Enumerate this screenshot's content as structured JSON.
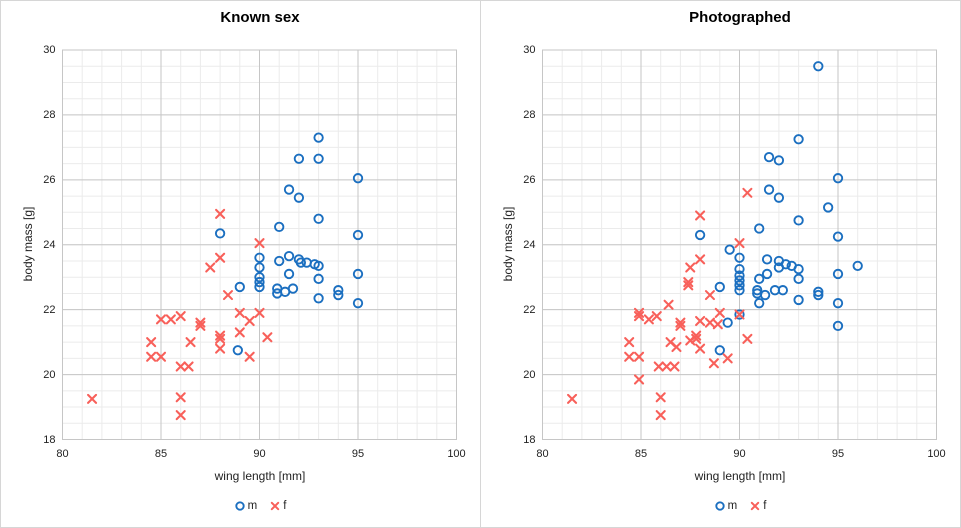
{
  "chart_data": [
    {
      "type": "scatter",
      "title": "Known sex",
      "xlabel": "wing length [mm]",
      "ylabel": "body mass [g]",
      "xlim": [
        80,
        100
      ],
      "ylim": [
        18,
        30
      ],
      "x_ticks": [
        80,
        85,
        90,
        95,
        100
      ],
      "y_ticks": [
        30,
        28,
        26,
        24,
        22,
        20,
        18
      ],
      "x_minor_step": 1,
      "y_minor_step": 0.5,
      "grid": true,
      "grid_minor_color": "#ebebeb",
      "grid_major_color": "#c6c6c6",
      "legend_position": "bottom",
      "series": [
        {
          "name": "m",
          "marker": "circle",
          "color": "#1b6fc0",
          "points": [
            [
              88,
              24.35
            ],
            [
              93,
              27.3
            ],
            [
              92,
              26.65
            ],
            [
              93,
              26.65
            ],
            [
              95,
              26.05
            ],
            [
              91.5,
              25.7
            ],
            [
              92,
              25.45
            ],
            [
              93,
              24.8
            ],
            [
              91,
              24.55
            ],
            [
              95,
              24.3
            ],
            [
              90,
              23.6
            ],
            [
              90,
              23.3
            ],
            [
              90,
              23.0
            ],
            [
              90,
              22.85
            ],
            [
              90,
              22.7
            ],
            [
              91,
              23.5
            ],
            [
              91.5,
              23.65
            ],
            [
              92,
              23.55
            ],
            [
              92.1,
              23.45
            ],
            [
              92.4,
              23.45
            ],
            [
              92.8,
              23.4
            ],
            [
              93,
              23.35
            ],
            [
              91.5,
              23.1
            ],
            [
              93,
              22.95
            ],
            [
              95,
              23.1
            ],
            [
              90.9,
              22.65
            ],
            [
              90.9,
              22.5
            ],
            [
              91.3,
              22.55
            ],
            [
              91.7,
              22.65
            ],
            [
              93,
              22.35
            ],
            [
              94,
              22.6
            ],
            [
              94,
              22.45
            ],
            [
              95,
              22.2
            ],
            [
              89,
              22.7
            ],
            [
              88.9,
              20.75
            ]
          ]
        },
        {
          "name": "f",
          "marker": "x",
          "color": "#f8605a",
          "points": [
            [
              88,
              24.95
            ],
            [
              90,
              24.05
            ],
            [
              88,
              23.6
            ],
            [
              87.5,
              23.3
            ],
            [
              88.4,
              22.45
            ],
            [
              85,
              21.7
            ],
            [
              85.5,
              21.7
            ],
            [
              86,
              21.8
            ],
            [
              87,
              21.6
            ],
            [
              87,
              21.5
            ],
            [
              89,
              21.9
            ],
            [
              90,
              21.9
            ],
            [
              89.5,
              21.65
            ],
            [
              89,
              21.3
            ],
            [
              88,
              21.2
            ],
            [
              88,
              21.1
            ],
            [
              90.4,
              21.15
            ],
            [
              84.5,
              21.0
            ],
            [
              86.5,
              21.0
            ],
            [
              88,
              20.8
            ],
            [
              89.5,
              20.55
            ],
            [
              84.5,
              20.55
            ],
            [
              85,
              20.55
            ],
            [
              86,
              20.25
            ],
            [
              86.4,
              20.25
            ],
            [
              81.5,
              19.25
            ],
            [
              86,
              19.3
            ],
            [
              86,
              18.75
            ]
          ]
        }
      ]
    },
    {
      "type": "scatter",
      "title": "Photographed",
      "xlabel": "wing length [mm]",
      "ylabel": "body mass [g]",
      "xlim": [
        80,
        100
      ],
      "ylim": [
        18,
        30
      ],
      "x_ticks": [
        80,
        85,
        90,
        95,
        100
      ],
      "y_ticks": [
        30,
        28,
        26,
        24,
        22,
        20,
        18
      ],
      "x_minor_step": 1,
      "y_minor_step": 0.5,
      "grid": true,
      "grid_minor_color": "#ebebeb",
      "grid_major_color": "#c6c6c6",
      "legend_position": "bottom",
      "series": [
        {
          "name": "m",
          "marker": "circle",
          "color": "#1b6fc0",
          "points": [
            [
              94,
              29.5
            ],
            [
              93,
              27.25
            ],
            [
              91.5,
              26.7
            ],
            [
              92,
              26.6
            ],
            [
              95,
              26.05
            ],
            [
              94.5,
              25.15
            ],
            [
              91.5,
              25.7
            ],
            [
              92,
              25.45
            ],
            [
              93,
              24.75
            ],
            [
              91,
              24.5
            ],
            [
              95,
              24.25
            ],
            [
              88,
              24.3
            ],
            [
              89.5,
              23.85
            ],
            [
              90,
              23.6
            ],
            [
              90,
              23.25
            ],
            [
              90,
              23.05
            ],
            [
              90,
              22.9
            ],
            [
              90,
              22.75
            ],
            [
              90,
              22.6
            ],
            [
              91.4,
              23.55
            ],
            [
              92,
              23.5
            ],
            [
              92,
              23.3
            ],
            [
              92.35,
              23.4
            ],
            [
              92.65,
              23.35
            ],
            [
              93,
              23.25
            ],
            [
              91,
              22.95
            ],
            [
              91.4,
              23.1
            ],
            [
              93,
              22.95
            ],
            [
              95,
              23.1
            ],
            [
              96,
              23.35
            ],
            [
              90.9,
              22.6
            ],
            [
              90.9,
              22.5
            ],
            [
              91.3,
              22.45
            ],
            [
              91.8,
              22.6
            ],
            [
              92.2,
              22.6
            ],
            [
              93,
              22.3
            ],
            [
              94,
              22.55
            ],
            [
              94,
              22.45
            ],
            [
              95,
              22.2
            ],
            [
              91,
              22.2
            ],
            [
              95,
              21.5
            ],
            [
              89,
              22.7
            ],
            [
              89,
              20.75
            ],
            [
              89.4,
              21.6
            ],
            [
              90,
              21.85
            ]
          ]
        },
        {
          "name": "f",
          "marker": "x",
          "color": "#f8605a",
          "points": [
            [
              88,
              24.9
            ],
            [
              90.4,
              25.6
            ],
            [
              90,
              24.05
            ],
            [
              88,
              23.55
            ],
            [
              87.5,
              23.3
            ],
            [
              87.4,
              22.85
            ],
            [
              87.4,
              22.75
            ],
            [
              88.5,
              22.45
            ],
            [
              86.4,
              22.15
            ],
            [
              84.9,
              21.9
            ],
            [
              84.9,
              21.8
            ],
            [
              85.4,
              21.7
            ],
            [
              85.8,
              21.8
            ],
            [
              87,
              21.6
            ],
            [
              87,
              21.5
            ],
            [
              89,
              21.9
            ],
            [
              90,
              21.85
            ],
            [
              88,
              21.65
            ],
            [
              88.5,
              21.6
            ],
            [
              88.9,
              21.55
            ],
            [
              84.4,
              21.0
            ],
            [
              86.5,
              21.0
            ],
            [
              87.5,
              21.05
            ],
            [
              86.8,
              20.85
            ],
            [
              87.8,
              21.2
            ],
            [
              87.8,
              21.1
            ],
            [
              88,
              20.8
            ],
            [
              90.4,
              21.1
            ],
            [
              84.4,
              20.55
            ],
            [
              84.9,
              20.55
            ],
            [
              85.9,
              20.25
            ],
            [
              86.3,
              20.25
            ],
            [
              86.7,
              20.25
            ],
            [
              84.9,
              19.85
            ],
            [
              88.7,
              20.35
            ],
            [
              89.4,
              20.5
            ],
            [
              81.5,
              19.25
            ],
            [
              86,
              19.3
            ],
            [
              86,
              18.75
            ]
          ]
        }
      ]
    }
  ]
}
